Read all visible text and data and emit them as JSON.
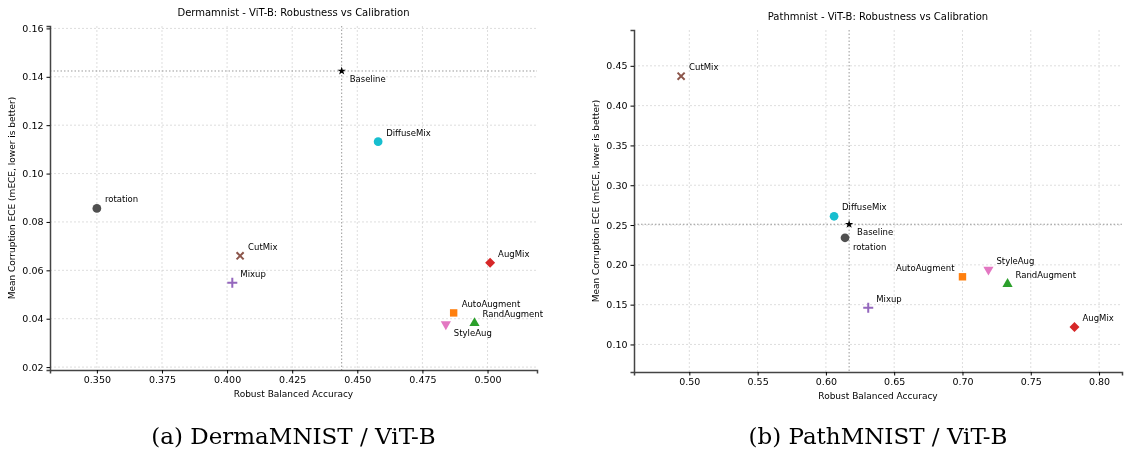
{
  "chart_data": [
    {
      "type": "scatter",
      "title": "Dermamnist - ViT-B: Robustness vs Calibration",
      "xlabel": "Robust Balanced Accuracy",
      "ylabel": "Mean Corruption ECE (mECE, lower is better)",
      "xlim": [
        0.332,
        0.519
      ],
      "ylim": [
        0.0188,
        0.161
      ],
      "xticks": [
        {
          "value": 0.35,
          "label": "0.350"
        },
        0.375,
        {
          "value": 0.4,
          "label": "0.400"
        },
        0.425,
        {
          "value": 0.45,
          "label": "0.450"
        },
        0.475,
        {
          "value": 0.5,
          "label": "0.500"
        }
      ],
      "yticks": [
        0.02,
        0.04,
        0.06,
        0.08,
        {
          "value": 0.1,
          "label": "0.10"
        },
        0.12,
        0.14,
        0.16
      ],
      "grid": true,
      "ref_lines": [
        {
          "axis": "y",
          "value": 0.1424,
          "color": "#808080",
          "line_style": "dotted"
        },
        {
          "axis": "x",
          "value": 0.444,
          "color": "#808080",
          "line_style": "dotted"
        }
      ],
      "series": [
        {
          "name": "Baseline",
          "color": "#000000",
          "marker": "star",
          "x": [
            0.444
          ],
          "values": [
            0.1424
          ]
        },
        {
          "name": "rotation",
          "color": "#505050",
          "marker": "circle",
          "x": [
            0.35
          ],
          "values": [
            0.0856
          ]
        },
        {
          "name": "CutMix",
          "color": "#8c564b",
          "marker": "x",
          "x": [
            0.405
          ],
          "values": [
            0.066
          ]
        },
        {
          "name": "Mixup",
          "color": "#9467bd",
          "marker": "plus",
          "x": [
            0.402
          ],
          "values": [
            0.0549
          ]
        },
        {
          "name": "AugMix",
          "color": "#d62728",
          "marker": "diamond",
          "x": [
            0.501
          ],
          "values": [
            0.0631
          ]
        },
        {
          "name": "AutoAugment",
          "color": "#ff7f0e",
          "marker": "square",
          "x": [
            0.487
          ],
          "values": [
            0.0424
          ]
        },
        {
          "name": "RandAugment",
          "color": "#2ca02c",
          "marker": "triangle",
          "x": [
            0.495
          ],
          "values": [
            0.0382
          ]
        },
        {
          "name": "StyleAug",
          "color": "#e377c2",
          "marker": "triangle-down",
          "x": [
            0.484
          ],
          "values": [
            0.0377
          ]
        },
        {
          "name": "DiffuseMix",
          "color": "#17becf",
          "marker": "circle",
          "x": [
            0.458
          ],
          "values": [
            0.1132
          ]
        }
      ],
      "annotations": [
        "(a) DermaMNIST / ViT-B"
      ]
    },
    {
      "type": "scatter",
      "title": "Pathmnist - ViT-B: Robustness vs Calibration",
      "xlabel": "Robust Balanced Accuracy",
      "ylabel": "Mean Corruption ECE (mECE, lower is better)",
      "xlim": [
        0.4595,
        0.8168
      ],
      "ylim": [
        0.0654,
        0.495
      ],
      "xticks": [
        {
          "value": 0.5,
          "label": "0.50"
        },
        0.55,
        {
          "value": 0.6,
          "label": "0.60"
        },
        0.65,
        {
          "value": 0.7,
          "label": "0.70"
        },
        0.75,
        {
          "value": 0.8,
          "label": "0.80"
        }
      ],
      "yticks": [
        {
          "value": 0.1,
          "label": "0.10"
        },
        0.15,
        {
          "value": 0.2,
          "label": "0.20"
        },
        0.25,
        {
          "value": 0.3,
          "label": "0.30"
        },
        0.35,
        {
          "value": 0.4,
          "label": "0.40"
        },
        0.45
      ],
      "grid": true,
      "ref_lines": [
        {
          "axis": "y",
          "value": 0.251,
          "color": "#808080",
          "line_style": "dotted"
        },
        {
          "axis": "x",
          "value": 0.617,
          "color": "#808080",
          "line_style": "dotted"
        }
      ],
      "series": [
        {
          "name": "Baseline",
          "color": "#000000",
          "marker": "star",
          "x": [
            0.617
          ],
          "values": [
            0.251
          ]
        },
        {
          "name": "rotation",
          "color": "#505050",
          "marker": "circle",
          "x": [
            0.614
          ],
          "values": [
            0.234
          ]
        },
        {
          "name": "CutMix",
          "color": "#8c564b",
          "marker": "x",
          "x": [
            0.494
          ],
          "values": [
            0.437
          ]
        },
        {
          "name": "Mixup",
          "color": "#9467bd",
          "marker": "plus",
          "x": [
            0.631
          ],
          "values": [
            0.146
          ]
        },
        {
          "name": "AugMix",
          "color": "#d62728",
          "marker": "diamond",
          "x": [
            0.782
          ],
          "values": [
            0.122
          ]
        },
        {
          "name": "StyleAug",
          "color": "#e377c2",
          "marker": "triangle-down",
          "x": [
            0.719
          ],
          "values": [
            0.194
          ]
        },
        {
          "name": "AutoAugment",
          "color": "#ff7f0e",
          "marker": "square",
          "x": [
            0.7
          ],
          "values": [
            0.185
          ]
        },
        {
          "name": "RandAugment",
          "color": "#2ca02c",
          "marker": "triangle",
          "x": [
            0.733
          ],
          "values": [
            0.176
          ]
        },
        {
          "name": "DiffuseMix",
          "color": "#17becf",
          "marker": "circle",
          "x": [
            0.606
          ],
          "values": [
            0.261
          ]
        }
      ],
      "annotations": [
        "(b) PathMNIST / ViT-B"
      ]
    }
  ]
}
